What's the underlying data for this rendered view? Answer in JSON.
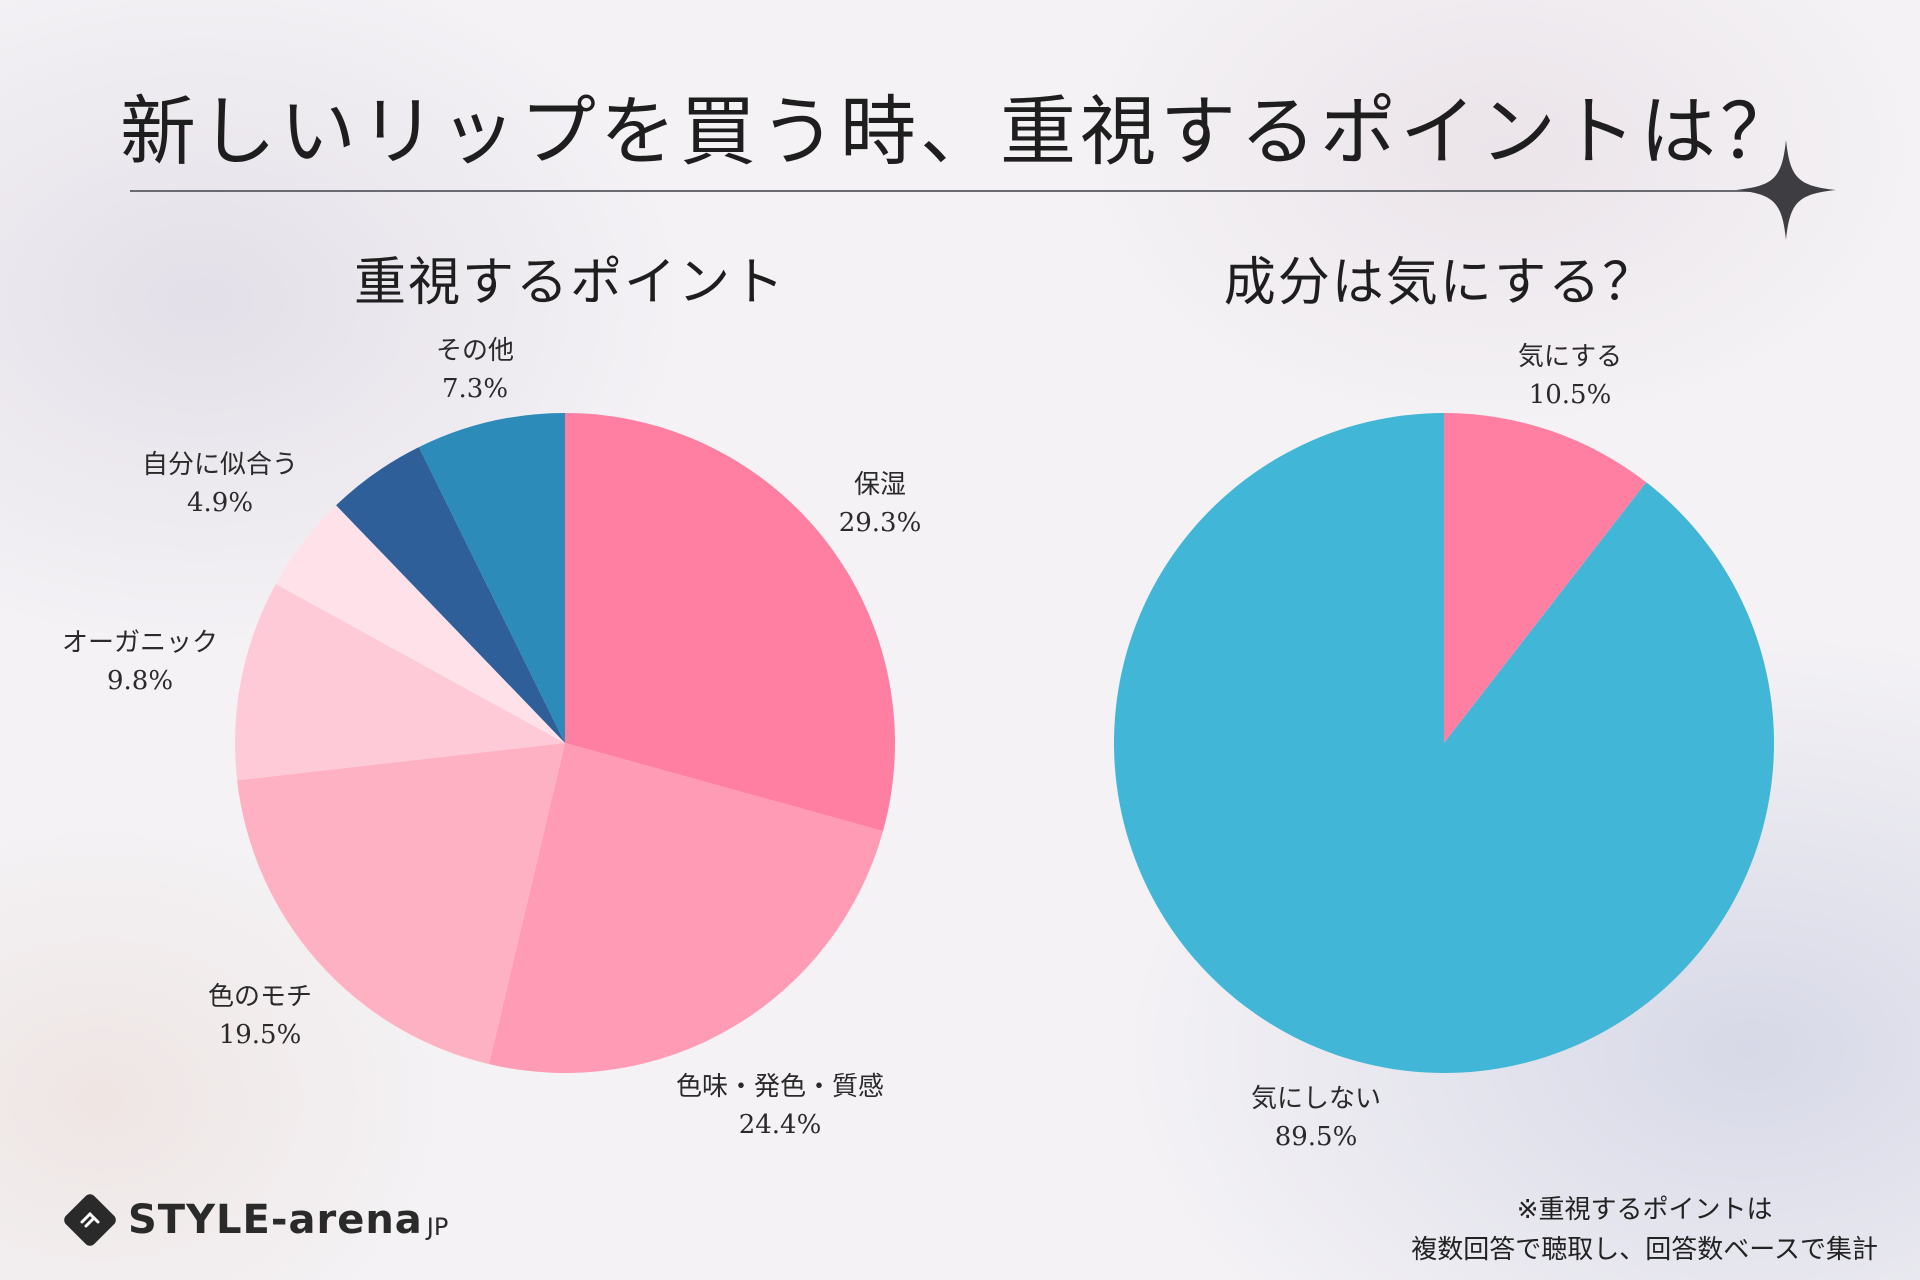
{
  "title": "新しいリップを買う時、重視するポイントは？",
  "charts": [
    {
      "title": "重視するポイント",
      "slices": [
        {
          "label": "保湿",
          "value_text": "29.3%"
        },
        {
          "label": "色味・発色・質感",
          "value_text": "24.4%"
        },
        {
          "label": "色のモチ",
          "value_text": "19.5%"
        },
        {
          "label": "オーガニック",
          "value_text": "9.8%"
        },
        {
          "label": "",
          "value_text": ""
        },
        {
          "label": "自分に似合う",
          "value_text": "4.9%"
        },
        {
          "label": "その他",
          "value_text": "7.3%"
        }
      ]
    },
    {
      "title": "成分は気にする？",
      "slices": [
        {
          "label": "気にする",
          "value_text": "10.5%"
        },
        {
          "label": "気にしない",
          "value_text": "89.5%"
        }
      ]
    }
  ],
  "chart_data": [
    {
      "type": "pie",
      "title": "重視するポイント",
      "categories": [
        "保湿",
        "色味・発色・質感",
        "色のモチ",
        "オーガニック",
        "",
        "自分に似合う",
        "その他"
      ],
      "values": [
        29.3,
        24.4,
        19.5,
        9.8,
        4.8,
        4.9,
        7.3
      ],
      "colors": [
        "#ff7fa3",
        "#ff9bb4",
        "#ffb1c4",
        "#ffcad8",
        "#ffe1e9",
        "#2e5f99",
        "#2d8bba"
      ],
      "start": "12 o'clock, clockwise"
    },
    {
      "type": "pie",
      "title": "成分は気にする？",
      "categories": [
        "気にする",
        "気にしない"
      ],
      "values": [
        10.5,
        89.5
      ],
      "colors": [
        "#ff7fa3",
        "#41b6d6"
      ],
      "start": "12 o'clock, clockwise"
    }
  ],
  "logo": {
    "text": "STYLE-arena",
    "suffix": "JP"
  },
  "note": {
    "line1": "※重視するポイントは",
    "line2": "複数回答で聴取し、回答数ベースで集計"
  }
}
